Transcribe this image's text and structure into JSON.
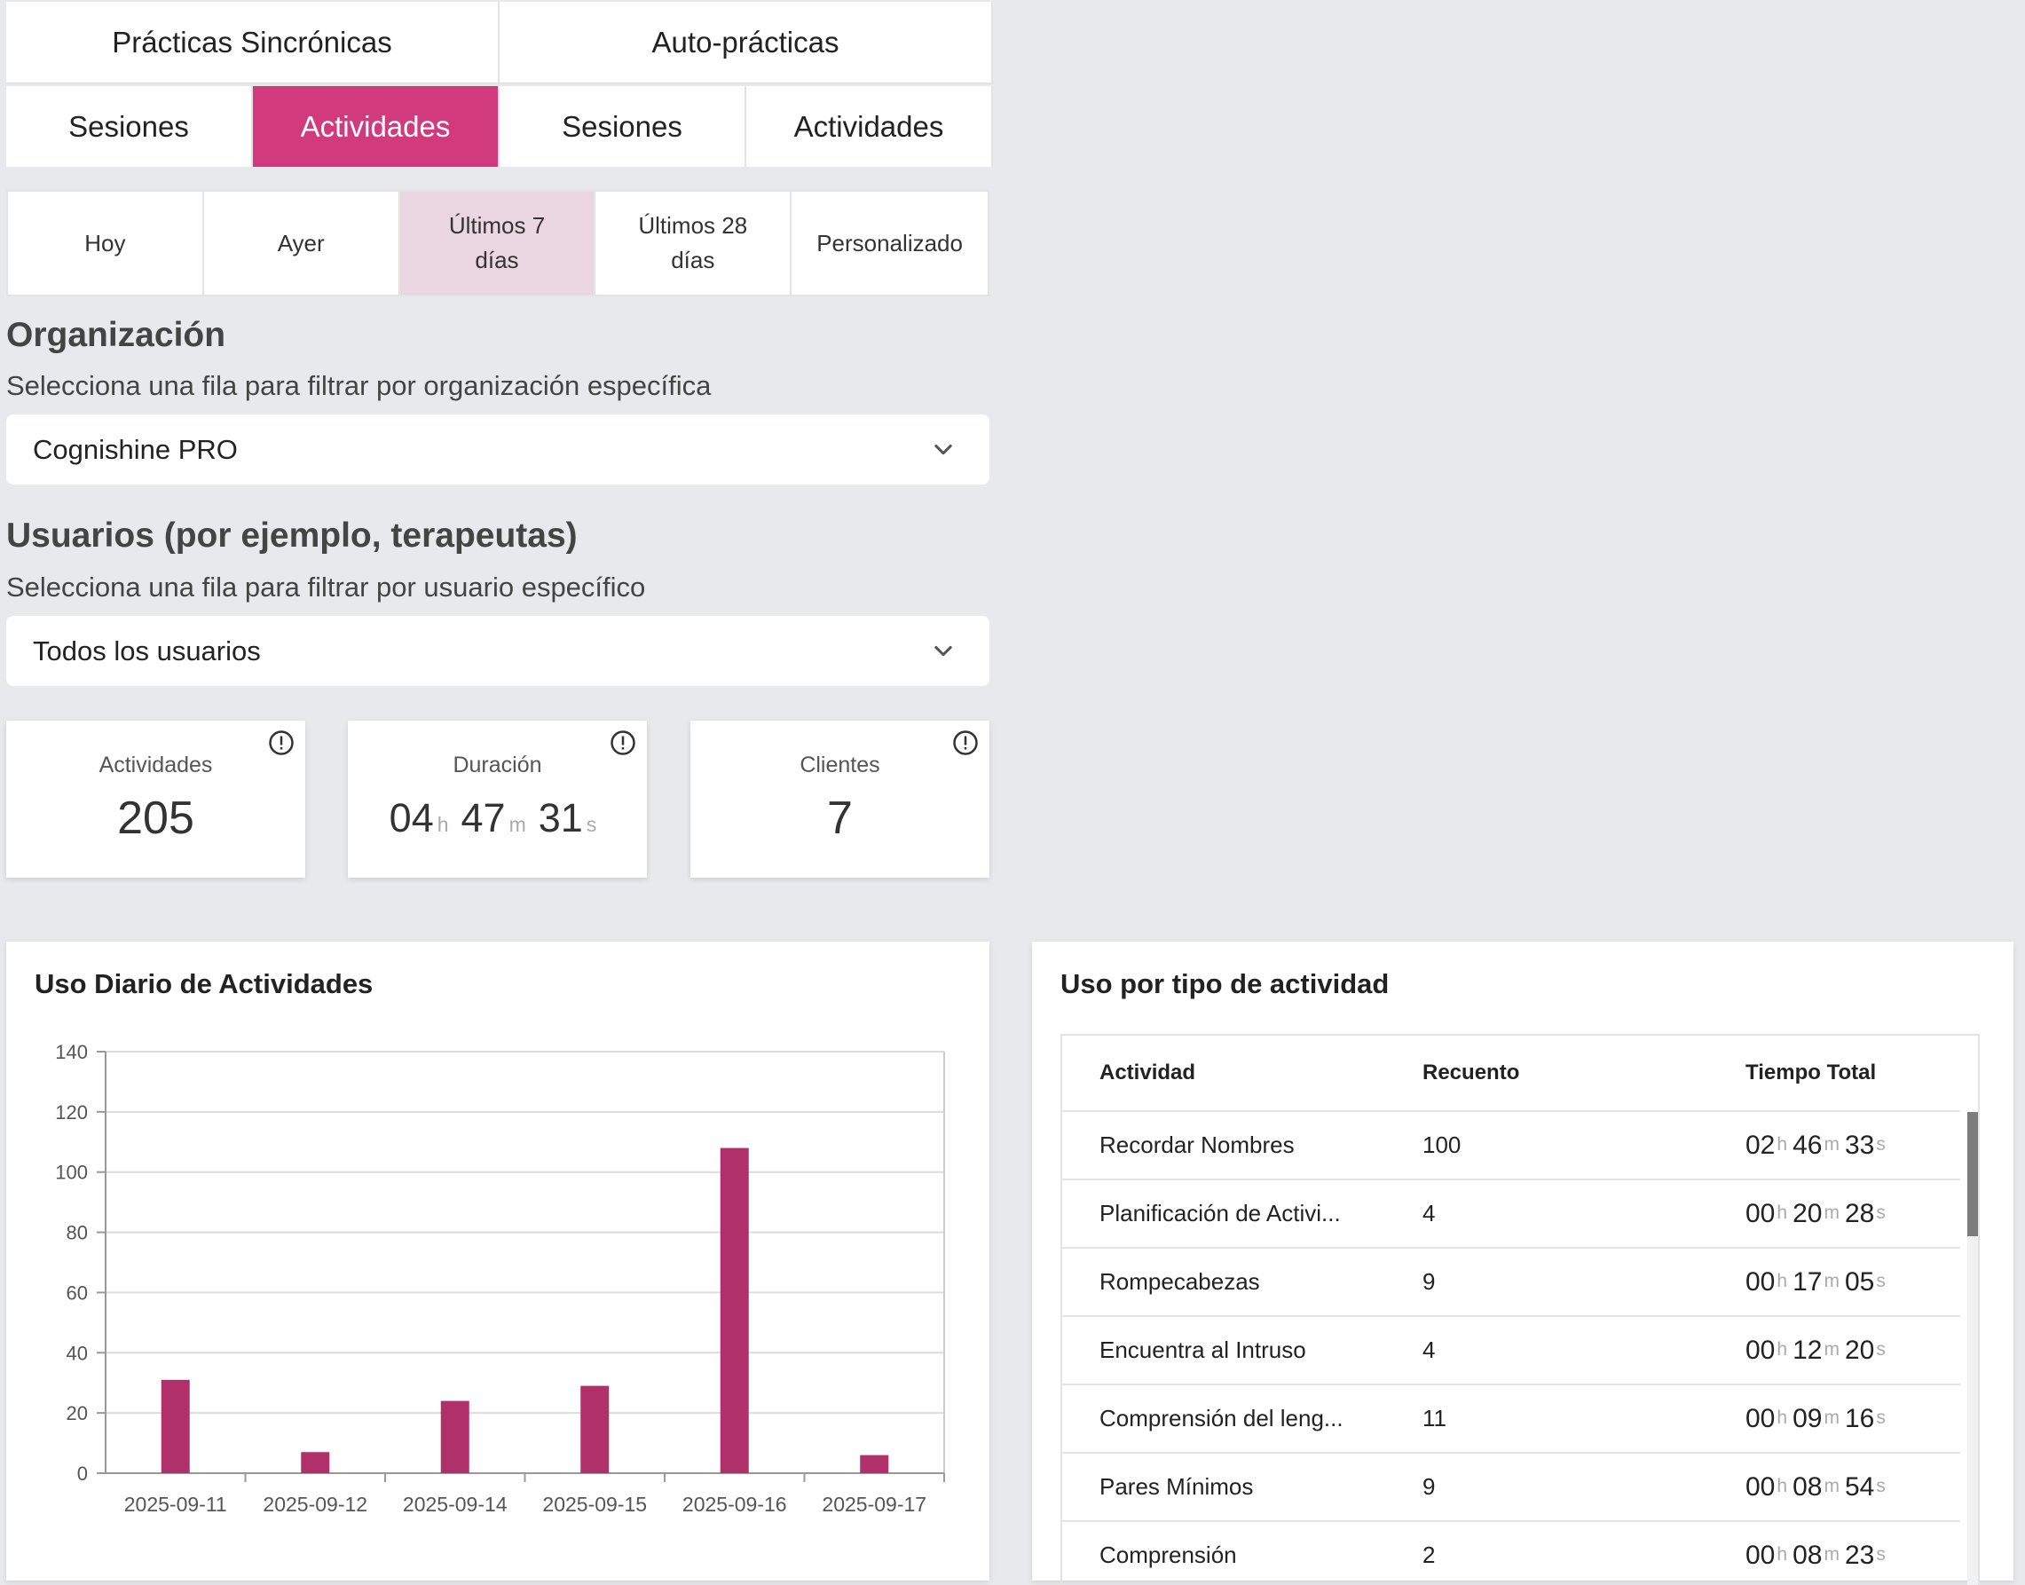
{
  "mode_tabs": [
    "Prácticas Sincrónicas",
    "Auto-prácticas"
  ],
  "sub_tabs": [
    "Sesiones",
    "Actividades",
    "Sesiones",
    "Actividades"
  ],
  "range_tabs": [
    "Hoy",
    "Ayer",
    "Últimos 7 días",
    "Últimos 28 días",
    "Personalizado"
  ],
  "organization": {
    "title": "Organización",
    "subtitle": "Selecciona una fila para filtrar por organización específica",
    "selected": "Cognishine PRO"
  },
  "users": {
    "title": "Usuarios (por ejemplo, terapeutas)",
    "subtitle": "Selecciona una fila para filtrar por usuario específico",
    "selected": "Todos los usuarios"
  },
  "kpis": {
    "activities": {
      "label": "Actividades",
      "value": "205"
    },
    "duration": {
      "label": "Duración",
      "h": "04",
      "m": "47",
      "s": "31",
      "h_unit": "h",
      "m_unit": "m",
      "s_unit": "s"
    },
    "clients": {
      "label": "Clientes",
      "value": "7"
    }
  },
  "daily_card": {
    "title": "Uso Diario de Actividades"
  },
  "chart_data": {
    "type": "bar",
    "categories": [
      "2025-09-11",
      "2025-09-12",
      "2025-09-14",
      "2025-09-15",
      "2025-09-16",
      "2025-09-17"
    ],
    "values": [
      31,
      7,
      24,
      29,
      108,
      6
    ],
    "yticks": [
      "0",
      "20",
      "40",
      "60",
      "80",
      "100",
      "120",
      "140"
    ],
    "ylim": [
      0,
      140
    ],
    "title": "",
    "xlabel": "",
    "ylabel": "",
    "grid": true,
    "bar_color": "#b0306a"
  },
  "type_card": {
    "title": "Uso por tipo de actividad",
    "headers": [
      "Actividad",
      "Recuento",
      "Tiempo Total"
    ],
    "rows": [
      {
        "name": "Recordar Nombres",
        "count": "100",
        "h": "02",
        "m": "46",
        "s": "33"
      },
      {
        "name": "Planificación de Activi...",
        "count": "4",
        "h": "00",
        "m": "20",
        "s": "28"
      },
      {
        "name": "Rompecabezas",
        "count": "9",
        "h": "00",
        "m": "17",
        "s": "05"
      },
      {
        "name": "Encuentra al Intruso",
        "count": "4",
        "h": "00",
        "m": "12",
        "s": "20"
      },
      {
        "name": "Comprensión del leng...",
        "count": "11",
        "h": "00",
        "m": "09",
        "s": "16"
      },
      {
        "name": "Pares Mínimos",
        "count": "9",
        "h": "00",
        "m": "08",
        "s": "54"
      },
      {
        "name": "Comprensión",
        "count": "2",
        "h": "00",
        "m": "08",
        "s": "23"
      }
    ]
  },
  "colors": {
    "accent": "#d13a7c",
    "range_active": "#ead6e0",
    "bar": "#b0306a",
    "background": "#e8e9ec"
  }
}
